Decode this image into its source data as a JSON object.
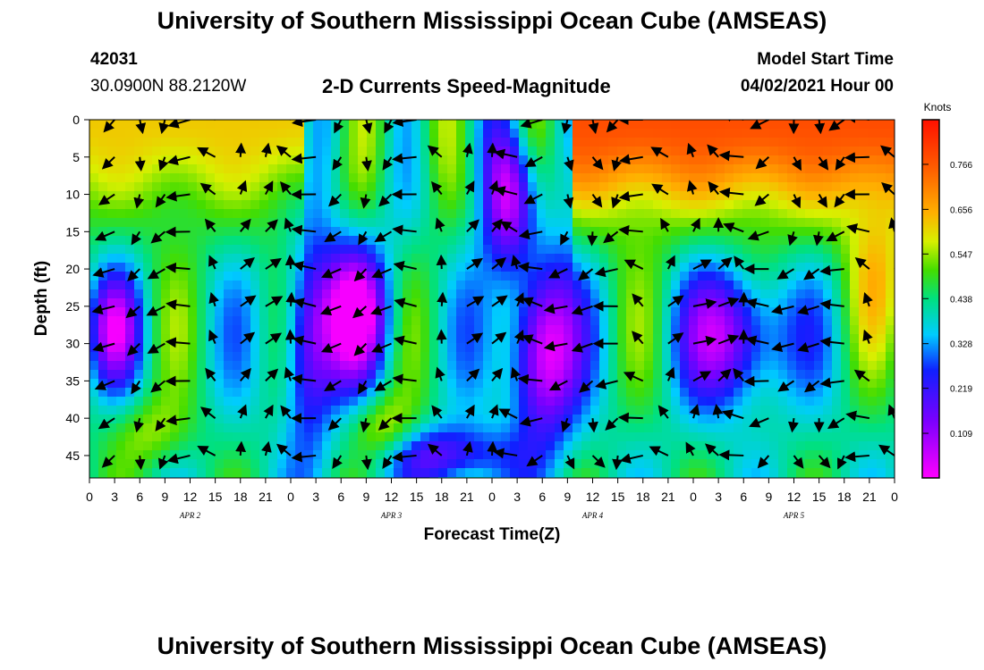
{
  "page": {
    "title_top": "University of Southern Mississippi Ocean Cube (AMSEAS)",
    "title_bottom": "University of Southern Mississippi Ocean Cube (AMSEAS)",
    "station_id": "42031",
    "coords": "30.0900N  88.2120W",
    "subtitle": "2-D Currents Speed-Magnitude",
    "model_start_label": "Model Start Time",
    "model_start_value": "04/02/2021 Hour 00"
  },
  "chart_data": {
    "type": "heatmap",
    "title": "2-D Currents Speed-Magnitude",
    "xlabel": "Forecast Time(Z)",
    "ylabel": "Depth (ft)",
    "x_tick_labels": [
      "0",
      "3",
      "6",
      "9",
      "12",
      "15",
      "18",
      "21",
      "0",
      "3",
      "6",
      "9",
      "12",
      "15",
      "18",
      "21",
      "0",
      "3",
      "6",
      "9",
      "12",
      "15",
      "18",
      "21",
      "0",
      "3",
      "6",
      "9",
      "12",
      "15",
      "18",
      "21",
      "0"
    ],
    "x_range_hours": [
      0,
      96
    ],
    "date_labels": [
      {
        "label": "APR 2",
        "hour": 12
      },
      {
        "label": "APR 3",
        "hour": 36
      },
      {
        "label": "APR 4",
        "hour": 60
      },
      {
        "label": "APR 5",
        "hour": 84
      }
    ],
    "y_tick_labels": [
      "0",
      "5",
      "10",
      "15",
      "20",
      "25",
      "30",
      "35",
      "40",
      "45"
    ],
    "y_range_ft": [
      0,
      48
    ],
    "colorbar": {
      "title": "Knots",
      "ticks": [
        "0.766",
        "0.656",
        "0.547",
        "0.438",
        "0.328",
        "0.219",
        "0.109"
      ],
      "range": [
        0.0,
        0.875
      ]
    },
    "speed_field_summary": [
      {
        "region": "surface layer, APR 2",
        "depth_ft": [
          0,
          12
        ],
        "hours": [
          0,
          24
        ],
        "speed_kt": 0.6
      },
      {
        "region": "surface layer, APR 4-5",
        "depth_ft": [
          0,
          15
        ],
        "hours": [
          60,
          96
        ],
        "speed_kt": 0.75
      },
      {
        "region": "low-speed core, APR 3 06Z",
        "depth_ft": [
          20,
          35
        ],
        "hours": [
          28,
          36
        ],
        "speed_kt": 0.05
      },
      {
        "region": "low-speed core, APR 4 06Z",
        "depth_ft": [
          25,
          40
        ],
        "hours": [
          50,
          58
        ],
        "speed_kt": 0.05
      },
      {
        "region": "low-speed core, APR 5 03Z",
        "depth_ft": [
          25,
          35
        ],
        "hours": [
          72,
          82
        ],
        "speed_kt": 0.1
      }
    ]
  }
}
